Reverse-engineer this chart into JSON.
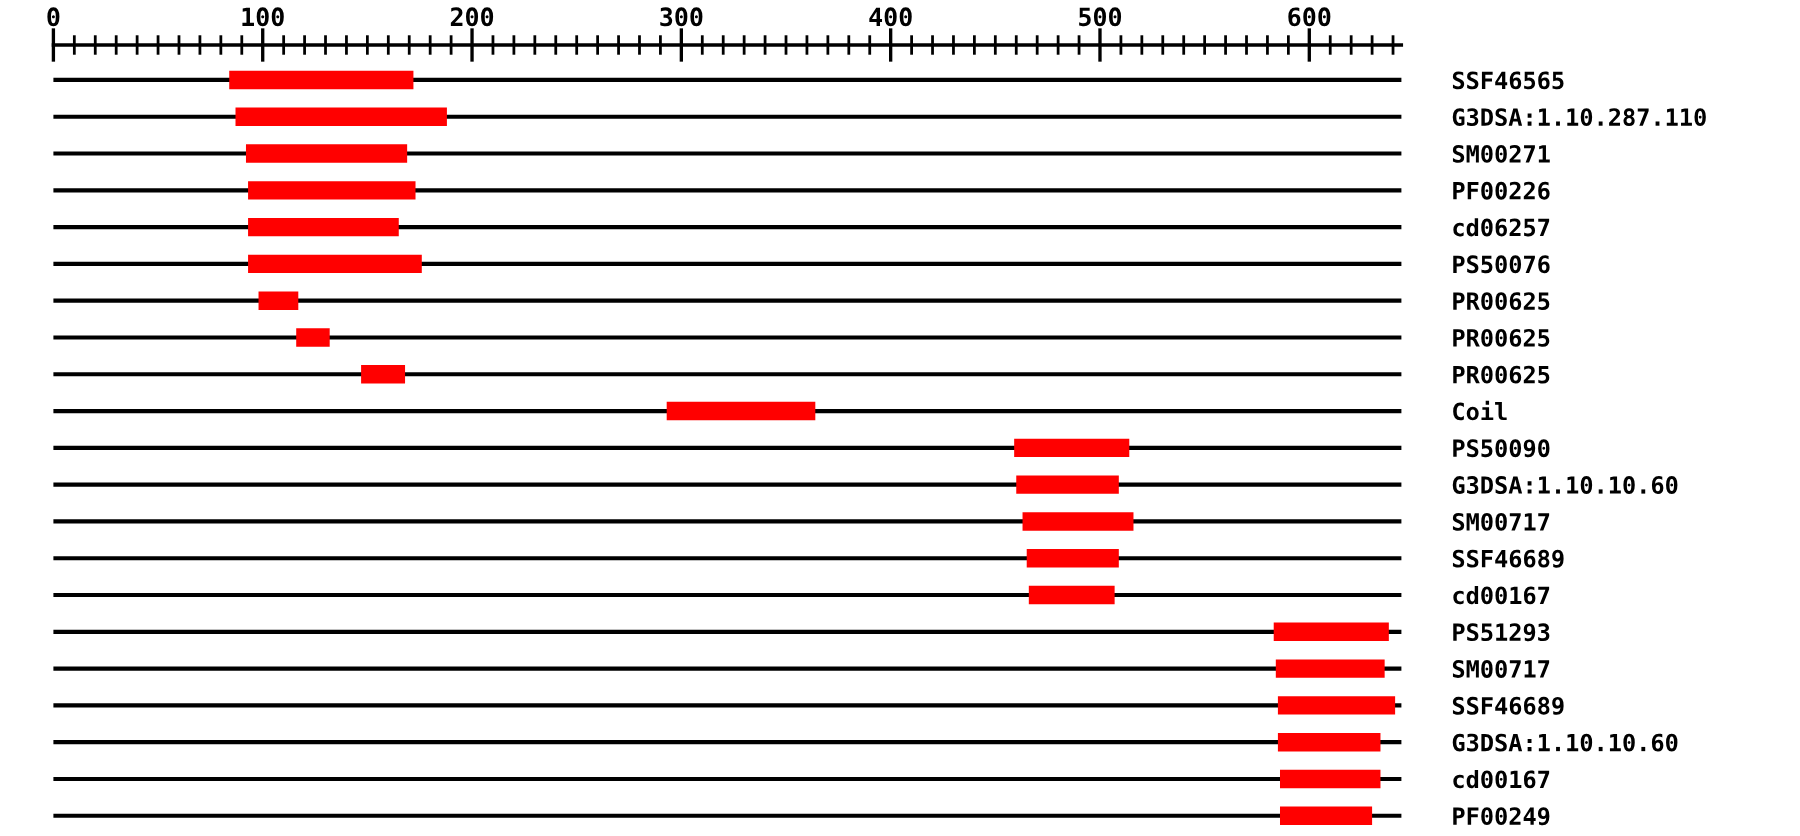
{
  "chart_data": {
    "type": "bar",
    "orientation": "horizontal",
    "categories": [
      "SSF46565",
      "G3DSA:1.10.287.110",
      "SM00271",
      "PF00226",
      "cd06257",
      "PS50076",
      "PR00625",
      "PR00625",
      "PR00625",
      "Coil",
      "PS50090",
      "G3DSA:1.10.10.60",
      "SM00717",
      "SSF46689",
      "cd00167",
      "PS51293",
      "SM00717",
      "SSF46689",
      "G3DSA:1.10.10.60",
      "cd00167",
      "PF00249"
    ],
    "base": [
      84,
      87,
      92,
      93,
      93,
      93,
      98,
      116,
      147,
      293,
      459,
      460,
      463,
      465,
      466,
      583,
      584,
      585,
      585,
      586,
      586
    ],
    "values": [
      88,
      101,
      77,
      80,
      72,
      83,
      19,
      16,
      21,
      71,
      55,
      49,
      53,
      44,
      41,
      55,
      52,
      56,
      49,
      48,
      44
    ],
    "color": "#ff0000",
    "xlim": [
      0,
      644
    ],
    "xticks": [
      0,
      {
        "value": 10,
        "label": null
      },
      {
        "value": 20,
        "label": null
      },
      {
        "value": 30,
        "label": null
      },
      {
        "value": 40,
        "label": null
      },
      {
        "value": 50,
        "label": null
      },
      {
        "value": 60,
        "label": null
      },
      {
        "value": 70,
        "label": null
      },
      {
        "value": 80,
        "label": null
      },
      {
        "value": 90,
        "label": null
      },
      100,
      {
        "value": 110,
        "label": null
      },
      {
        "value": 120,
        "label": null
      },
      {
        "value": 130,
        "label": null
      },
      {
        "value": 140,
        "label": null
      },
      {
        "value": 150,
        "label": null
      },
      {
        "value": 160,
        "label": null
      },
      {
        "value": 170,
        "label": null
      },
      {
        "value": 180,
        "label": null
      },
      {
        "value": 190,
        "label": null
      },
      200,
      {
        "value": 210,
        "label": null
      },
      {
        "value": 220,
        "label": null
      },
      {
        "value": 230,
        "label": null
      },
      {
        "value": 240,
        "label": null
      },
      {
        "value": 250,
        "label": null
      },
      {
        "value": 260,
        "label": null
      },
      {
        "value": 270,
        "label": null
      },
      {
        "value": 280,
        "label": null
      },
      {
        "value": 290,
        "label": null
      },
      300,
      {
        "value": 310,
        "label": null
      },
      {
        "value": 320,
        "label": null
      },
      {
        "value": 330,
        "label": null
      },
      {
        "value": 340,
        "label": null
      },
      {
        "value": 350,
        "label": null
      },
      {
        "value": 360,
        "label": null
      },
      {
        "value": 370,
        "label": null
      },
      {
        "value": 380,
        "label": null
      },
      {
        "value": 390,
        "label": null
      },
      400,
      {
        "value": 410,
        "label": null
      },
      {
        "value": 420,
        "label": null
      },
      {
        "value": 430,
        "label": null
      },
      {
        "value": 440,
        "label": null
      },
      {
        "value": 450,
        "label": null
      },
      {
        "value": 460,
        "label": null
      },
      {
        "value": 470,
        "label": null
      },
      {
        "value": 480,
        "label": null
      },
      {
        "value": 490,
        "label": null
      },
      500,
      {
        "value": 510,
        "label": null
      },
      {
        "value": 520,
        "label": null
      },
      {
        "value": 530,
        "label": null
      },
      {
        "value": 540,
        "label": null
      },
      {
        "value": 550,
        "label": null
      },
      {
        "value": 560,
        "label": null
      },
      {
        "value": 570,
        "label": null
      },
      {
        "value": 580,
        "label": null
      },
      {
        "value": 590,
        "label": null
      },
      600,
      {
        "value": 610,
        "label": null
      },
      {
        "value": 620,
        "label": null
      },
      {
        "value": 630,
        "label": null
      },
      {
        "value": 640,
        "label": null
      }
    ],
    "grid": "y"
  }
}
